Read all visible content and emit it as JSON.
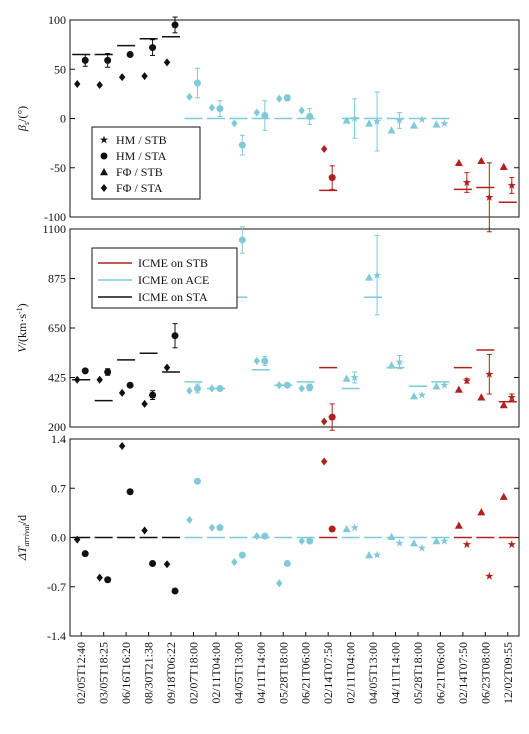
{
  "chart_data": [
    {
      "type": "scatter",
      "ylabel": {
        "main": "β",
        "sub": "s",
        "rest": "/(°)"
      },
      "ylim": [
        -100,
        100
      ],
      "yticks": [
        100,
        50,
        0,
        -50,
        -100
      ],
      "legend": [
        "HM / STB",
        "HM / STA",
        "FΦ / STB",
        "FΦ / STA"
      ],
      "observed": [
        65,
        65,
        74,
        81,
        83,
        0,
        0,
        0,
        0,
        0,
        0,
        -73,
        0,
        0,
        0,
        0,
        0,
        -72,
        -70,
        -85
      ],
      "series": [
        {
          "name": "HM / STB",
          "marker": "star",
          "values": [
            null,
            null,
            null,
            null,
            null,
            null,
            null,
            null,
            null,
            null,
            null,
            null,
            0,
            -3,
            -2,
            -1,
            -5,
            -65,
            -80,
            -68
          ],
          "errors": [
            null,
            null,
            null,
            null,
            null,
            null,
            null,
            null,
            null,
            null,
            null,
            null,
            20,
            30,
            8,
            null,
            null,
            10,
            35,
            8
          ]
        },
        {
          "name": "HM / STA",
          "marker": "circle",
          "values": [
            59,
            59,
            65,
            72,
            95,
            36,
            10,
            -27,
            3,
            21,
            2,
            -60,
            null,
            null,
            null,
            null,
            null,
            null,
            null,
            null
          ],
          "errors": [
            6,
            7,
            null,
            8,
            8,
            15,
            8,
            10,
            15,
            3,
            8,
            12,
            null,
            null,
            null,
            null,
            null,
            null,
            null,
            null
          ]
        },
        {
          "name": "FΦ / STB",
          "marker": "triangle",
          "values": [
            null,
            null,
            null,
            null,
            null,
            null,
            null,
            null,
            null,
            null,
            null,
            null,
            -2,
            -5,
            -12,
            -7,
            -6,
            -45,
            -43,
            -49
          ]
        },
        {
          "name": "FΦ / STA",
          "marker": "diamond",
          "values": [
            35,
            34,
            42,
            43,
            57,
            22,
            11,
            -5,
            6,
            20,
            8,
            -31,
            null,
            null,
            null,
            null,
            null,
            null,
            null,
            null
          ]
        }
      ]
    },
    {
      "type": "scatter",
      "ylabel": {
        "main": "V",
        "rest": "/(km·s",
        "sup": "-1",
        "end": ")"
      },
      "ylim": [
        200,
        1100
      ],
      "yticks": [
        1100,
        875,
        650,
        425,
        200
      ],
      "icme_legend": [
        {
          "name": "ICME on STB",
          "color": "#b0201c"
        },
        {
          "name": "ICME on ACE",
          "color": "#7fc9d9"
        },
        {
          "name": "ICME on STA",
          "color": "#111111"
        }
      ],
      "observed": [
        415,
        320,
        505,
        535,
        450,
        405,
        375,
        790,
        460,
        390,
        405,
        470,
        375,
        790,
        470,
        385,
        405,
        470,
        550,
        315
      ],
      "series": [
        {
          "marker": "star",
          "values": [
            null,
            null,
            null,
            null,
            null,
            null,
            null,
            null,
            null,
            null,
            null,
            null,
            425,
            890,
            495,
            345,
            390,
            410,
            440,
            335
          ],
          "errors": [
            null,
            null,
            null,
            null,
            null,
            null,
            null,
            null,
            null,
            null,
            null,
            null,
            25,
            180,
            30,
            null,
            null,
            10,
            90,
            15
          ]
        },
        {
          "marker": "circle",
          "values": [
            455,
            450,
            390,
            345,
            615,
            375,
            375,
            1050,
            500,
            390,
            380,
            245,
            null,
            null,
            null,
            null,
            null,
            null,
            null,
            null
          ],
          "errors": [
            null,
            15,
            null,
            20,
            55,
            20,
            null,
            60,
            20,
            null,
            15,
            60,
            null,
            null,
            null,
            null,
            null,
            null,
            null,
            null
          ]
        },
        {
          "marker": "triangle",
          "values": [
            null,
            null,
            null,
            null,
            null,
            null,
            null,
            null,
            null,
            null,
            null,
            null,
            420,
            880,
            480,
            340,
            385,
            370,
            335,
            300
          ]
        },
        {
          "marker": "diamond",
          "values": [
            415,
            415,
            355,
            305,
            470,
            365,
            375,
            null,
            500,
            390,
            375,
            225,
            null,
            null,
            null,
            null,
            null,
            null,
            null,
            null
          ]
        }
      ]
    },
    {
      "type": "scatter",
      "ylabel": {
        "main": "ΔT",
        "sub": "arrival",
        "rest": "/d"
      },
      "ylim": [
        -1.4,
        1.4
      ],
      "yticks": [
        1.4,
        0.7,
        {
          "value": 0,
          "label": "0.0"
        },
        -0.7,
        -1.4
      ],
      "categories": [
        "02/05T12:40",
        "03/05T18:25",
        "06/16T16:20",
        "08/30T21:38",
        "09/18T06:22",
        "02/07T18:00",
        "02/11T04:00",
        "04/05T13:00",
        "04/11T14:00",
        "05/28T18:00",
        "06/21T06:00",
        "02/14T07:50",
        "02/11T04:00",
        "04/05T13:00",
        "04/11T14:00",
        "05/28T18:00",
        "06/21T06:00",
        "02/14T07:50",
        "06/23T08:00",
        "12/02T09:55"
      ],
      "event_colors": [
        "#111111",
        "#111111",
        "#111111",
        "#111111",
        "#111111",
        "#7fc9d9",
        "#7fc9d9",
        "#7fc9d9",
        "#7fc9d9",
        "#7fc9d9",
        "#7fc9d9",
        "#b0201c",
        "#7fc9d9",
        "#7fc9d9",
        "#7fc9d9",
        "#7fc9d9",
        "#7fc9d9",
        "#b0201c",
        "#b0201c",
        "#b0201c"
      ],
      "observed": [
        0,
        0,
        0,
        0,
        0,
        0,
        0,
        0,
        0,
        0,
        0,
        0,
        0,
        0,
        0,
        0,
        0,
        0,
        0,
        0
      ],
      "series": [
        {
          "marker": "star",
          "values": [
            null,
            null,
            null,
            null,
            null,
            null,
            null,
            null,
            null,
            null,
            null,
            null,
            0.14,
            -0.25,
            -0.08,
            -0.15,
            -0.05,
            -0.1,
            -0.55,
            -0.1
          ]
        },
        {
          "marker": "circle",
          "values": [
            -0.23,
            -0.6,
            0.65,
            -0.37,
            -0.76,
            0.8,
            0.14,
            -0.25,
            0.02,
            -0.37,
            -0.05,
            0.12,
            null,
            null,
            null,
            null,
            null,
            null,
            null,
            null
          ]
        },
        {
          "marker": "triangle",
          "values": [
            null,
            null,
            null,
            null,
            null,
            null,
            null,
            null,
            null,
            null,
            null,
            null,
            0.12,
            -0.25,
            0.01,
            -0.08,
            -0.05,
            0.17,
            0.36,
            0.58
          ]
        },
        {
          "marker": "diamond",
          "values": [
            -0.03,
            -0.57,
            1.3,
            0.1,
            -0.38,
            0.25,
            0.14,
            -0.35,
            0.02,
            -0.65,
            -0.05,
            1.08,
            null,
            null,
            null,
            null,
            null,
            null,
            null,
            null
          ]
        }
      ]
    }
  ]
}
